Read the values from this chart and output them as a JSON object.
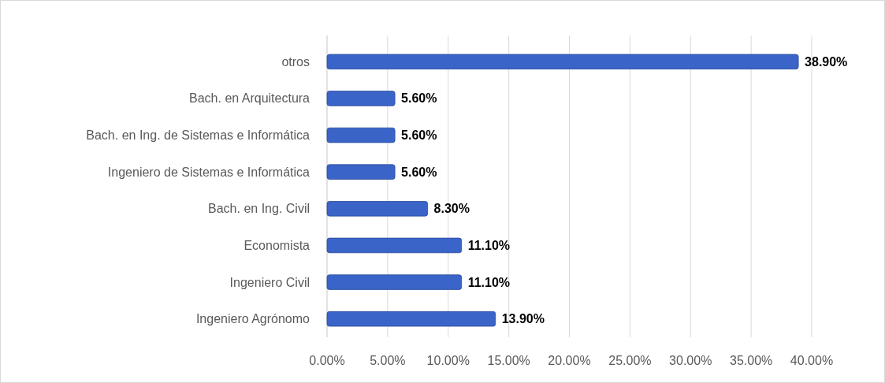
{
  "chart_data": {
    "type": "bar",
    "orientation": "horizontal",
    "categories": [
      "otros",
      "Bach. en Arquitectura",
      "Bach. en Ing. de Sistemas e Informática",
      "Ingeniero de Sistemas e Informática",
      "Bach. en Ing. Civil",
      "Economista",
      "Ingeniero Civil",
      "Ingeniero Agrónomo"
    ],
    "values": [
      38.9,
      5.6,
      5.6,
      5.6,
      8.3,
      11.1,
      11.1,
      13.9
    ],
    "value_labels": [
      "38.90%",
      "5.60%",
      "5.60%",
      "5.60%",
      "8.30%",
      "11.10%",
      "11.10%",
      "13.90%"
    ],
    "color": "#3a64c8",
    "xlim": [
      0,
      40
    ],
    "xticks": [
      {
        "value": 0,
        "label": "0.00%"
      },
      {
        "value": 5,
        "label": "5.00%"
      },
      {
        "value": 10,
        "label": "10.00%"
      },
      {
        "value": 15,
        "label": "15.00%"
      },
      {
        "value": 20,
        "label": "20.00%"
      },
      {
        "value": 25,
        "label": "25.00%"
      },
      {
        "value": 30,
        "label": "30.00%"
      },
      {
        "value": 35,
        "label": "35.00%"
      },
      {
        "value": 40,
        "label": "40.00%"
      }
    ],
    "grid": "x"
  }
}
